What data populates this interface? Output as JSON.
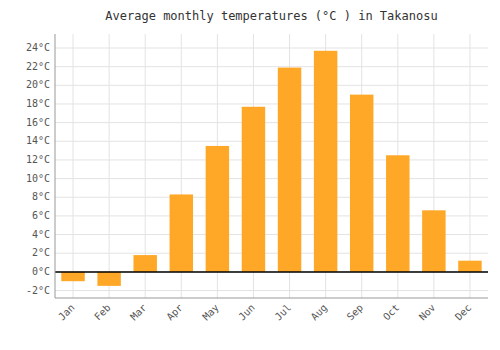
{
  "chart_data": {
    "type": "bar",
    "title": "Average monthly temperatures (°C ) in Takanosu",
    "categories": [
      "Jan",
      "Feb",
      "Mar",
      "Apr",
      "May",
      "Jun",
      "Jul",
      "Aug",
      "Sep",
      "Oct",
      "Nov",
      "Dec"
    ],
    "values": [
      -1.0,
      -1.5,
      1.8,
      8.3,
      13.5,
      17.7,
      21.9,
      23.7,
      19.0,
      12.5,
      6.6,
      1.2
    ],
    "color": "#FFA726",
    "ylim": [
      -2.8,
      25.5
    ],
    "yticks": [
      {
        "value": -2,
        "label": "-2°C"
      },
      {
        "value": 0,
        "label": "0°C"
      },
      {
        "value": 2,
        "label": "2°C"
      },
      {
        "value": 4,
        "label": "4°C"
      },
      {
        "value": 6,
        "label": "6°C"
      },
      {
        "value": 8,
        "label": "8°C"
      },
      {
        "value": 10,
        "label": "10°C"
      },
      {
        "value": 12,
        "label": "12°C"
      },
      {
        "value": 14,
        "label": "14°C"
      },
      {
        "value": 16,
        "label": "16°C"
      },
      {
        "value": 18,
        "label": "18°C"
      },
      {
        "value": 20,
        "label": "20°C"
      },
      {
        "value": 22,
        "label": "22°C"
      },
      {
        "value": 24,
        "label": "24°C"
      }
    ],
    "grid": true
  }
}
